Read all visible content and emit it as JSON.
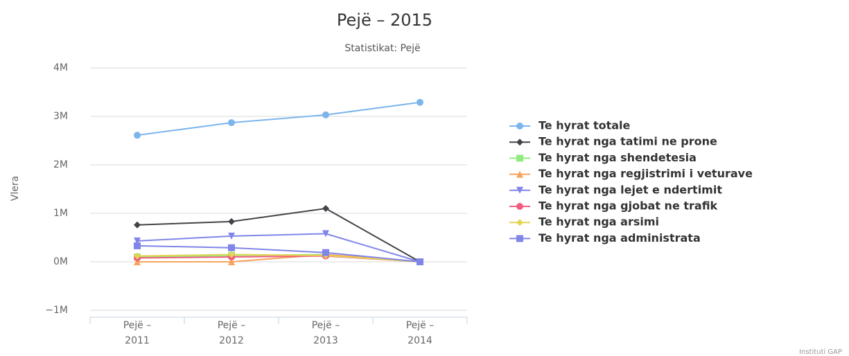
{
  "chart_data": {
    "type": "line",
    "title": "Pejë – 2015",
    "subtitle": "Statistikat: Pejë",
    "y_label": "Vlera",
    "credits": "Instituti GAP",
    "categories": [
      "Pejë – 2011",
      "Pejë – 2012",
      "Pejë – 2013",
      "Pejë – 2014"
    ],
    "ylim": [
      -1000000,
      4000000
    ],
    "yticks": [
      {
        "value": -1000000,
        "label": "−1M"
      },
      {
        "value": 0,
        "label": "0M"
      },
      {
        "value": 1000000,
        "label": "1M"
      },
      {
        "value": 2000000,
        "label": "2M"
      },
      {
        "value": 3000000,
        "label": "3M"
      },
      {
        "value": 4000000,
        "label": "4M"
      }
    ],
    "grid": true,
    "legend": "right",
    "series": [
      {
        "name": "Te hyrat totale",
        "color": "#7cb5ec",
        "marker": "circle",
        "values": [
          2610000,
          2870000,
          3030000,
          3290000
        ]
      },
      {
        "name": "Te hyrat nga tatimi ne prone",
        "color": "#434348",
        "marker": "diamond",
        "values": [
          760000,
          830000,
          1100000,
          0
        ]
      },
      {
        "name": "Te hyrat nga shendetesia",
        "color": "#90ed7d",
        "marker": "square",
        "values": [
          100000,
          130000,
          150000,
          0
        ]
      },
      {
        "name": "Te hyrat nga regjistrimi i veturave",
        "color": "#f7a35c",
        "marker": "triangle",
        "values": [
          0,
          0,
          150000,
          0
        ]
      },
      {
        "name": "Te hyrat nga lejet e ndertimit",
        "color": "#8085e9",
        "marker": "triangle-down",
        "values": [
          430000,
          530000,
          580000,
          0
        ]
      },
      {
        "name": "Te hyrat nga gjobat ne trafik",
        "color": "#f15c80",
        "marker": "circle",
        "values": [
          80000,
          100000,
          120000,
          0
        ]
      },
      {
        "name": "Te hyrat nga arsimi",
        "color": "#e4d354",
        "marker": "diamond",
        "values": [
          120000,
          150000,
          130000,
          0
        ]
      },
      {
        "name": "Te hyrat nga administrata",
        "color": "#8085e8",
        "marker": "square",
        "values": [
          330000,
          290000,
          190000,
          0
        ]
      }
    ]
  }
}
